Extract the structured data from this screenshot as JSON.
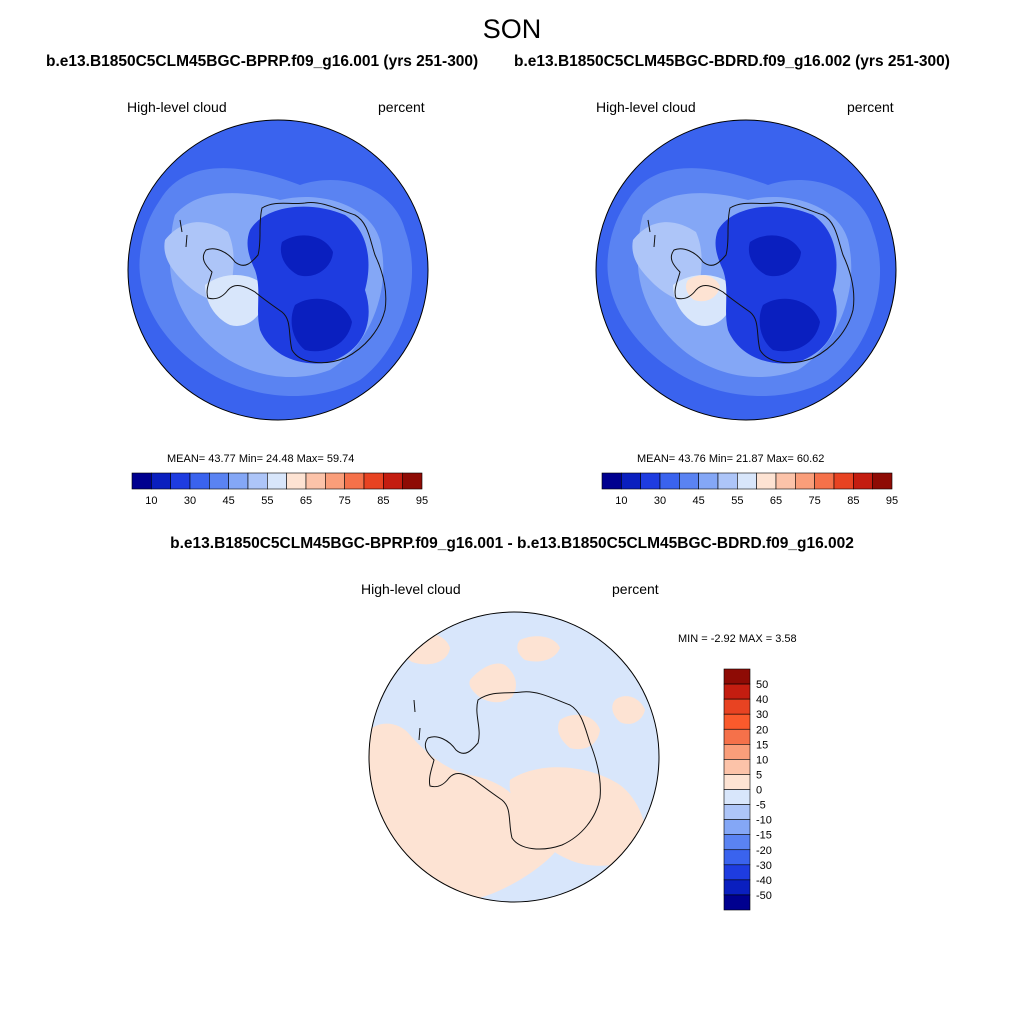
{
  "figure": {
    "season": "SON",
    "case1_title": "b.e13.B1850C5CLM45BGC-BPRP.f09_g16.001 (yrs 251-300)",
    "case2_title": "b.e13.B1850C5CLM45BGC-BDRD.f09_g16.002 (yrs 251-300)",
    "diff_title": "b.e13.B1850C5CLM45BGC-BPRP.f09_g16.001 - b.e13.B1850C5CLM45BGC-BDRD.f09_g16.002"
  },
  "panels": [
    {
      "variable": "High-level cloud",
      "units": "percent",
      "stats": "MEAN=  43.77  Min=  24.48  Max=  59.74"
    },
    {
      "variable": "High-level cloud",
      "units": "percent",
      "stats": "MEAN=  43.76  Min=  21.87  Max=  60.62"
    },
    {
      "variable": "High-level cloud",
      "units": "percent",
      "stats": "MIN =  -2.92 MAX =   3.58"
    }
  ],
  "colorbar_abs": {
    "labels": [
      "10",
      "30",
      "45",
      "55",
      "65",
      "75",
      "85",
      "95"
    ],
    "colors": [
      "#00008f",
      "#0a1fbf",
      "#1e3ce0",
      "#3a63ee",
      "#5a83f2",
      "#84a7f6",
      "#adc5f8",
      "#d8e6fb",
      "#fde3d3",
      "#fcc3a9",
      "#fa9e7a",
      "#f5714a",
      "#e84322",
      "#c41d10",
      "#8e0b05"
    ]
  },
  "colorbar_diff": {
    "labels": [
      "50",
      "40",
      "30",
      "20",
      "15",
      "10",
      "5",
      "0",
      "-5",
      "-10",
      "-15",
      "-20",
      "-30",
      "-40",
      "-50"
    ],
    "colors": [
      "#8e0b05",
      "#c41d10",
      "#e84322",
      "#fa5a2c",
      "#f5714a",
      "#fa9e7a",
      "#fcc3a9",
      "#fde3d3",
      "#d8e6fb",
      "#adc5f8",
      "#84a7f6",
      "#5a83f2",
      "#3a63ee",
      "#1e3ce0",
      "#0a1fbf",
      "#00008f"
    ]
  }
}
